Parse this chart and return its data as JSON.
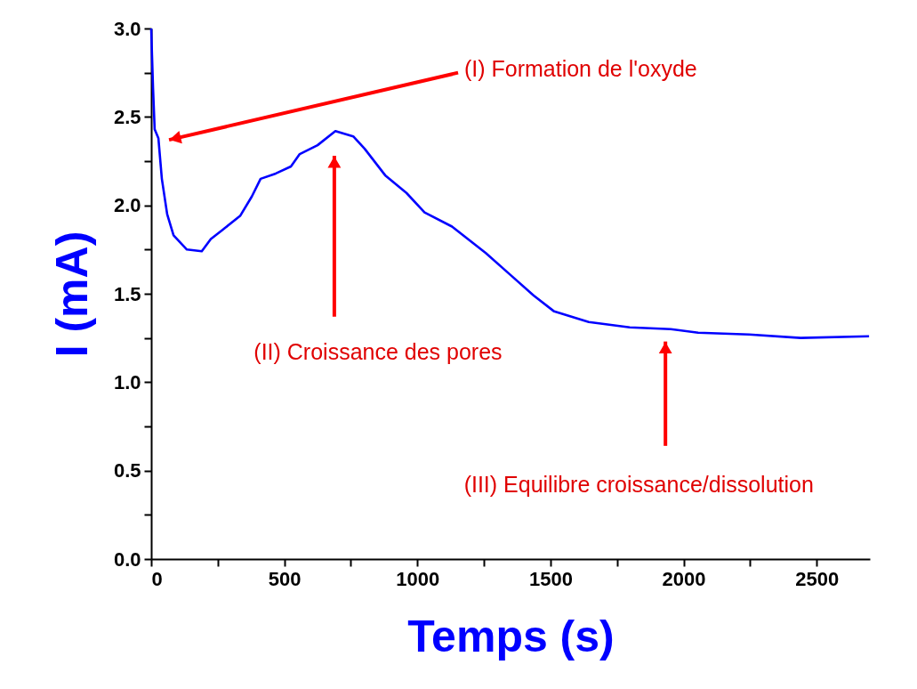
{
  "chart_data": {
    "type": "line",
    "xlabel": "Temps (s)",
    "ylabel": "I (mA)",
    "x": [
      0,
      3,
      7,
      13,
      27,
      40,
      60,
      84,
      134,
      190,
      224,
      267,
      334,
      378,
      411,
      468,
      525,
      558,
      625,
      692,
      759,
      802,
      879,
      959,
      1027,
      1130,
      1257,
      1347,
      1437,
      1514,
      1644,
      1798,
      1952,
      2055,
      2246,
      2440,
      2697
    ],
    "series": [
      {
        "color": "#0000ff",
        "values": [
          3.0,
          2.85,
          2.66,
          2.43,
          2.38,
          2.15,
          1.95,
          1.83,
          1.75,
          1.74,
          1.81,
          1.86,
          1.94,
          2.05,
          2.15,
          2.18,
          2.22,
          2.29,
          2.34,
          2.42,
          2.39,
          2.32,
          2.17,
          2.07,
          1.96,
          1.88,
          1.73,
          1.61,
          1.49,
          1.4,
          1.34,
          1.31,
          1.3,
          1.28,
          1.27,
          1.25,
          1.26
        ]
      }
    ],
    "xlim": [
      0,
      2700
    ],
    "ylim": [
      0,
      3
    ],
    "xticks": [
      0,
      {
        "value": 250,
        "label": null
      },
      500,
      {
        "value": 750,
        "label": null
      },
      1000,
      {
        "value": 1250,
        "label": null
      },
      1500,
      {
        "value": 1750,
        "label": null
      },
      2000,
      {
        "value": 2250,
        "label": null
      },
      2500
    ],
    "yticks": [
      {
        "value": 0,
        "label": "0.0"
      },
      {
        "value": 0.25,
        "label": null
      },
      0.5,
      {
        "value": 0.75,
        "label": null
      },
      {
        "value": 1,
        "label": "1.0"
      },
      {
        "value": 1.25,
        "label": null
      },
      1.5,
      {
        "value": 1.75,
        "label": null
      },
      {
        "value": 2,
        "label": "2.0"
      },
      {
        "value": 2.25,
        "label": null
      },
      2.5,
      {
        "value": 2.75,
        "label": null
      },
      {
        "value": 3,
        "label": "3.0"
      }
    ],
    "annotations": [
      "(I) Formation de l'oxyde",
      "(II) Croissance des pores",
      "(III) Equilibre croissance/dissolution"
    ],
    "grid": false,
    "marker": "none",
    "line_style": "solid"
  }
}
